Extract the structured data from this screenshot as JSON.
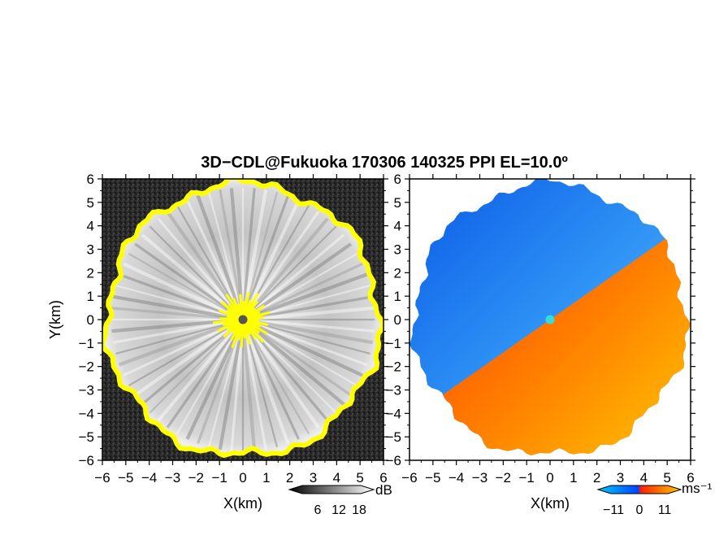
{
  "title": "3D−CDL@Fukuoka 170306 140325 PPI EL=10.0º",
  "chart_data": [
    {
      "type": "heatmap",
      "quantity": "reflectivity",
      "xlabel": "X(km)",
      "ylabel": "Y(km)",
      "xlim": [
        -6,
        6
      ],
      "ylim": [
        -6,
        6
      ],
      "x_ticks": [
        "−6",
        "−5",
        "−4",
        "−3",
        "−2",
        "−1",
        "0",
        "1",
        "2",
        "3",
        "4",
        "5",
        "6"
      ],
      "y_ticks": [
        "−6",
        "−5",
        "−4",
        "−3",
        "−2",
        "−1",
        "0",
        "1",
        "2",
        "3",
        "4",
        "5",
        "6"
      ],
      "scan_radius_km": 5.8,
      "colorbar": {
        "unit": "dB",
        "tick_labels": [
          "6",
          "12",
          "18"
        ],
        "colors": [
          "#000000",
          "#ffffff"
        ]
      },
      "colors": {
        "background_noise": "#2a2a2a",
        "edge_highlight": "#ffff00",
        "center_marker": "#555555"
      }
    },
    {
      "type": "heatmap",
      "quantity": "radial velocity",
      "xlabel": "X(km)",
      "ylabel": "",
      "xlim": [
        -6,
        6
      ],
      "ylim": [
        -6,
        6
      ],
      "x_ticks": [
        "−6",
        "−5",
        "−4",
        "−3",
        "−2",
        "−1",
        "0",
        "1",
        "2",
        "3",
        "4",
        "5",
        "6"
      ],
      "y_ticks": [
        "−6",
        "−5",
        "−4",
        "−3",
        "−2",
        "−1",
        "0",
        "1",
        "2",
        "3",
        "4",
        "5",
        "6"
      ],
      "scan_radius_km": 5.8,
      "colorbar": {
        "unit": "ms⁻¹",
        "tick_labels": [
          "−11",
          "0",
          "11"
        ],
        "colors": [
          "#00ccff",
          "#0044ff",
          "#ff2200",
          "#ffcc00"
        ]
      },
      "colors": {
        "negative": "#1e7bf0",
        "positive": "#ff5a00",
        "center_marker": "#33dddd"
      }
    }
  ]
}
